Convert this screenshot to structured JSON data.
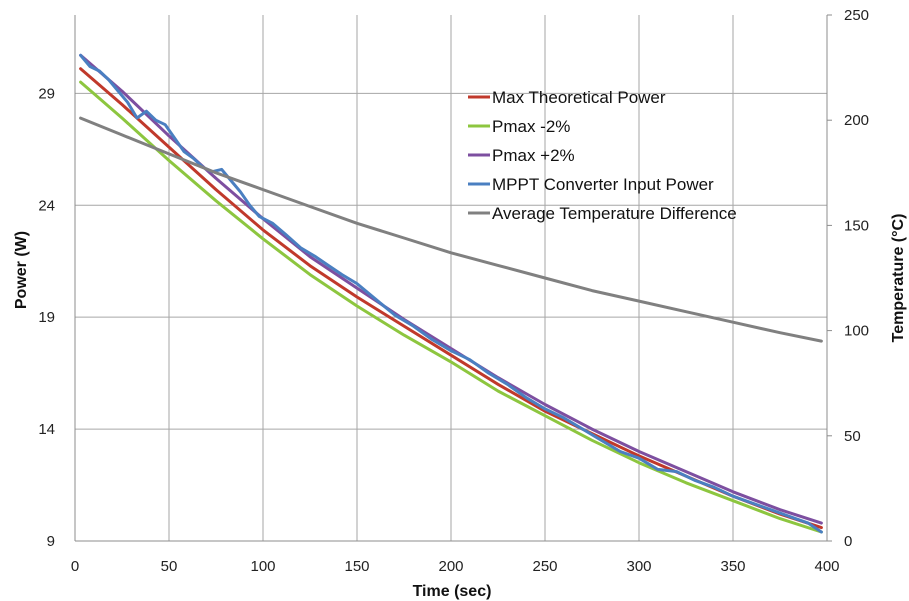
{
  "chart_data": {
    "type": "line",
    "title": "",
    "xlabel": "Time (sec)",
    "ylabel": "Power (W)",
    "y2label": "Temperature (°C)",
    "xlim": [
      0,
      400
    ],
    "ylim": [
      9,
      32.5
    ],
    "y2lim": [
      0,
      250
    ],
    "xticks": [
      0,
      50,
      100,
      150,
      200,
      250,
      300,
      350,
      400
    ],
    "yticks": [
      9,
      14,
      19,
      24,
      29
    ],
    "y2ticks": [
      0,
      50,
      100,
      150,
      200,
      250
    ],
    "grid": true,
    "legend_position": "top-right",
    "series": [
      {
        "name": "Max Theoretical Power",
        "axis": "left",
        "color": "#c0392b",
        "x": [
          3,
          25,
          50,
          75,
          100,
          125,
          150,
          175,
          200,
          225,
          250,
          275,
          300,
          325,
          350,
          375,
          397
        ],
        "values": [
          30.1,
          28.5,
          26.6,
          24.7,
          22.9,
          21.3,
          19.9,
          18.6,
          17.3,
          16.0,
          14.8,
          13.8,
          12.8,
          11.9,
          11.0,
          10.2,
          9.6
        ]
      },
      {
        "name": "Pmax -2%",
        "axis": "left",
        "color": "#8dc63f",
        "x": [
          3,
          25,
          50,
          75,
          100,
          125,
          150,
          175,
          200,
          225,
          250,
          275,
          300,
          325,
          350,
          375,
          397
        ],
        "values": [
          29.5,
          27.9,
          26.0,
          24.2,
          22.5,
          20.9,
          19.5,
          18.2,
          17.0,
          15.7,
          14.6,
          13.5,
          12.5,
          11.6,
          10.8,
          10.0,
          9.4
        ]
      },
      {
        "name": "Pmax +2%",
        "axis": "left",
        "color": "#7d4fa0",
        "x": [
          3,
          25,
          50,
          75,
          100,
          125,
          150,
          175,
          200,
          225,
          250,
          275,
          300,
          325,
          350,
          375,
          397
        ],
        "values": [
          30.7,
          29.1,
          27.1,
          25.2,
          23.4,
          21.7,
          20.3,
          18.9,
          17.6,
          16.3,
          15.1,
          14.0,
          13.0,
          12.1,
          11.2,
          10.4,
          9.8
        ]
      },
      {
        "name": "MPPT Converter Input  Power",
        "axis": "left",
        "color": "#4a7fc1",
        "x": [
          3,
          8,
          13,
          18,
          23,
          28,
          33,
          38,
          43,
          48,
          53,
          58,
          63,
          68,
          73,
          78,
          83,
          88,
          93,
          98,
          105,
          112,
          120,
          128,
          135,
          142,
          150,
          160,
          170,
          180,
          190,
          200,
          210,
          220,
          230,
          240,
          250,
          260,
          270,
          280,
          290,
          300,
          310,
          320,
          330,
          340,
          350,
          360,
          370,
          380,
          390,
          397
        ],
        "values": [
          30.7,
          30.2,
          30.0,
          29.6,
          29.1,
          28.6,
          27.9,
          28.2,
          27.8,
          27.6,
          27.0,
          26.4,
          26.1,
          25.7,
          25.5,
          25.6,
          25.1,
          24.6,
          24.0,
          23.5,
          23.2,
          22.7,
          22.1,
          21.7,
          21.3,
          20.9,
          20.5,
          19.8,
          19.1,
          18.6,
          18.0,
          17.5,
          17.1,
          16.5,
          16.0,
          15.4,
          14.9,
          14.5,
          14.0,
          13.5,
          13.0,
          12.7,
          12.2,
          12.1,
          11.7,
          11.4,
          11.0,
          10.7,
          10.4,
          10.1,
          9.8,
          9.4
        ]
      },
      {
        "name": "Average Temperature Difference",
        "axis": "right",
        "color": "#808080",
        "x": [
          3,
          25,
          50,
          75,
          100,
          125,
          150,
          175,
          200,
          225,
          250,
          275,
          300,
          325,
          350,
          375,
          397
        ],
        "values": [
          201,
          193,
          184,
          175,
          167,
          159,
          151,
          144,
          137,
          131,
          125,
          119,
          114,
          109,
          104,
          99,
          95
        ]
      }
    ]
  }
}
